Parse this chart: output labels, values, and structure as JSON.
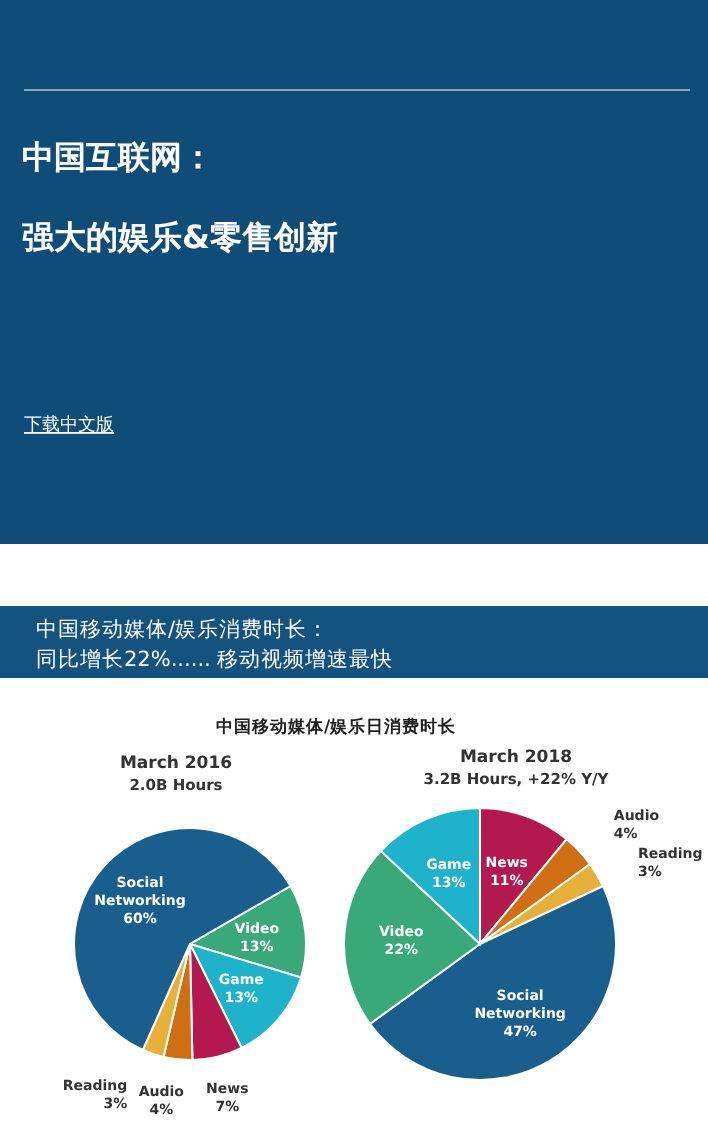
{
  "chart_data": [
    {
      "type": "other",
      "title": "中国互联网：",
      "subtitle": "强大的娱乐&零售创新",
      "annotations": [
        "下载中文版"
      ]
    },
    {
      "type": "other",
      "title": "中国移动媒体/娱乐消费时长：",
      "subtitle": "同比增长22%...... 移动视频增速最快",
      "annotations": [
        "中国移动媒体/娱乐日消费时长"
      ]
    },
    {
      "type": "pie",
      "title": "March 2016",
      "subtitle": "2.0B Hours",
      "categories": [
        "Video",
        "Game",
        "News",
        "Audio",
        "Reading",
        "Social Networking"
      ],
      "values": [
        13,
        13,
        7,
        4,
        3,
        60
      ],
      "value_labels": [
        "13%",
        "13%",
        "7%",
        "4%",
        "3%",
        "60%"
      ],
      "colors": [
        "#3aa97a",
        "#1fb3cb",
        "#b3184e",
        "#cf6e12",
        "#e6b03a",
        "#195e8d"
      ]
    },
    {
      "type": "pie",
      "title": "March 2018",
      "subtitle": "3.2B Hours, +22% Y/Y",
      "categories": [
        "News",
        "Audio",
        "Reading",
        "Social Networking",
        "Video",
        "Game"
      ],
      "values": [
        11,
        4,
        3,
        47,
        22,
        13
      ],
      "value_labels": [
        "11%",
        "4%",
        "3%",
        "47%",
        "22%",
        "13%"
      ],
      "colors": [
        "#b3184e",
        "#cf6e12",
        "#e6b03a",
        "#195e8d",
        "#3aa97a",
        "#1fb3cb"
      ]
    }
  ]
}
